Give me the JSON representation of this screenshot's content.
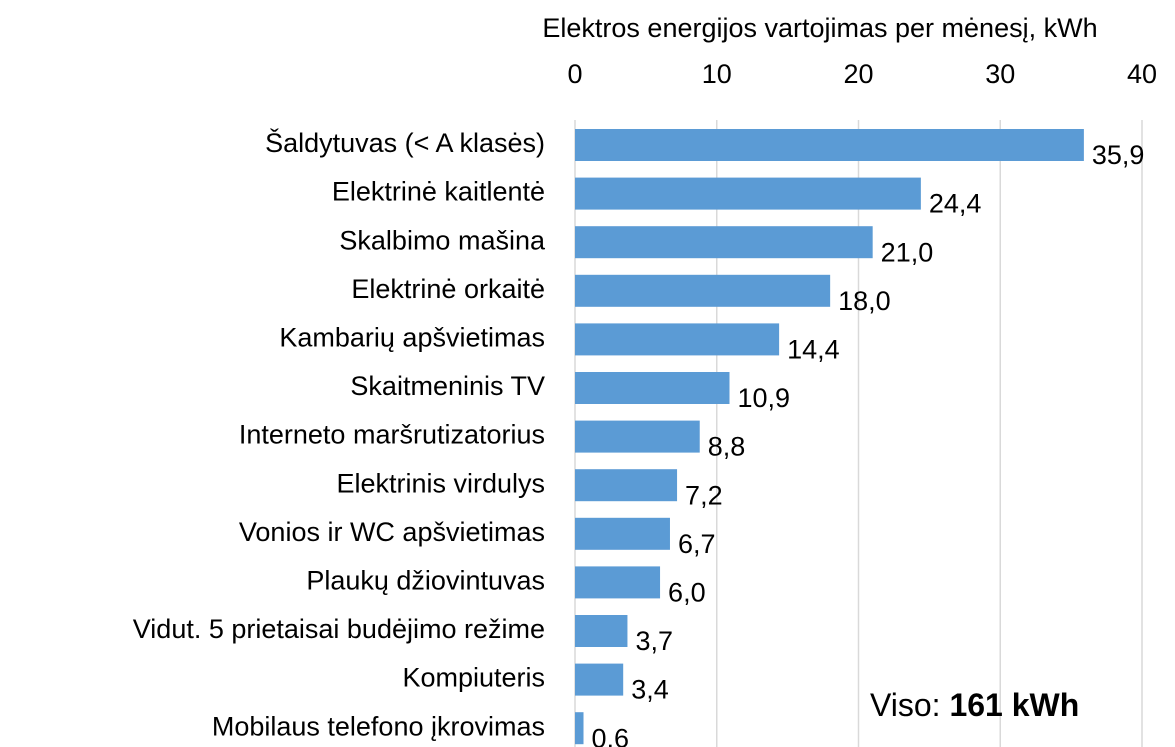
{
  "chart_data": {
    "type": "barh",
    "xlabel": "Elektros energijos vartojimas per mėnesį, kWh",
    "categories": [
      "Šaldytuvas (< A klasės)",
      "Elektrinė kaitlentė",
      "Skalbimo mašina",
      "Elektrinė orkaitė",
      "Kambarių apšvietimas",
      "Skaitmeninis TV",
      "Interneto maršrutizatorius",
      "Elektrinis virdulys",
      "Vonios ir WC apšvietimas",
      "Plaukų džiovintuvas",
      "Vidut. 5 prietaisai budėjimo režime",
      "Kompiuteris",
      "Mobilaus telefono įkrovimas"
    ],
    "values": [
      35.9,
      24.4,
      21.0,
      18.0,
      14.4,
      10.9,
      8.8,
      7.2,
      6.7,
      6.0,
      3.7,
      3.4,
      0.6
    ],
    "value_labels": [
      "35,9",
      "24,4",
      "21,0",
      "18,0",
      "14,4",
      "10,9",
      "8,8",
      "7,2",
      "6,7",
      "6,0",
      "3,7",
      "3,4",
      "0,6"
    ],
    "color": "#5b9bd5",
    "xlim": [
      0,
      40
    ],
    "xticks": [
      0,
      10,
      20,
      30,
      40
    ],
    "grid": true,
    "annotation": {
      "label": "Viso:",
      "value": "161 kWh"
    }
  }
}
